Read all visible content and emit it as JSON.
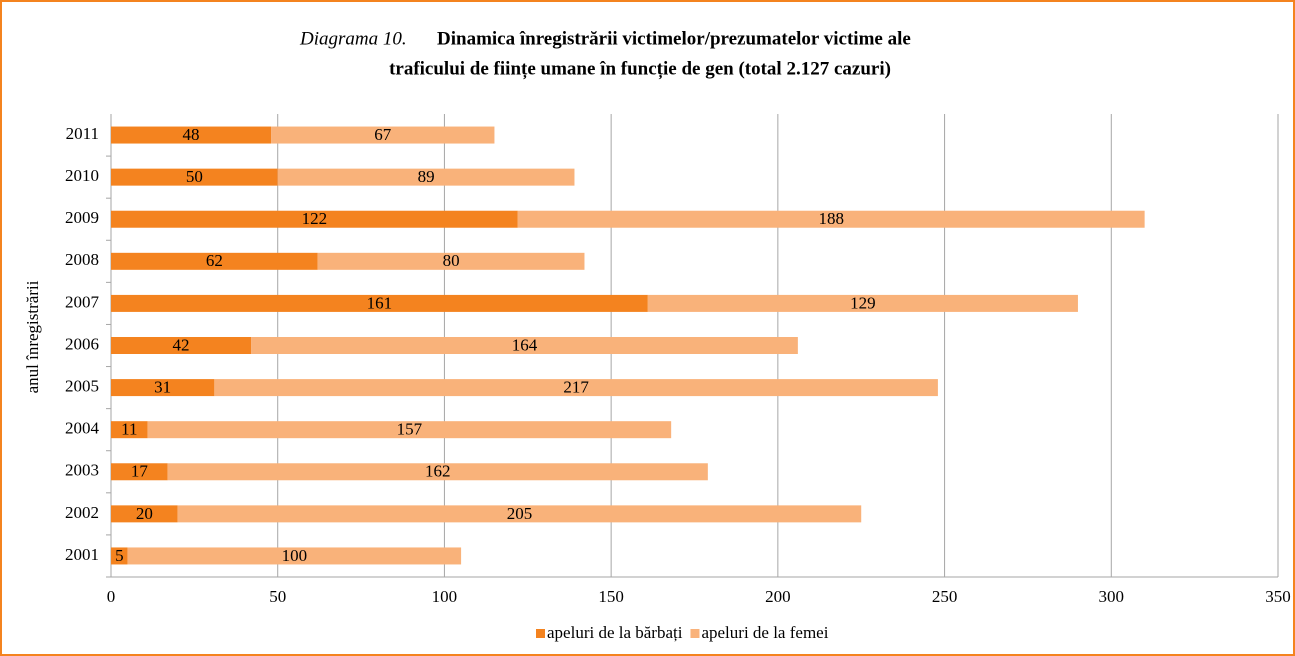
{
  "chart_data": {
    "type": "stacked_barh",
    "title_prefix": "Diagrama 10.",
    "title": [
      "Dinamica înregistrării victimelor/prezumatelor victime ale",
      "traficului de ființe umane în funcție de gen (total 2.127 cazuri)"
    ],
    "y_label": "anul înregistrării",
    "categories": [
      "2001",
      "2002",
      "2003",
      "2004",
      "2005",
      "2006",
      "2007",
      "2008",
      "2009",
      "2010",
      "2011"
    ],
    "series": [
      {
        "name": "apeluri de la bărbați",
        "color": "#f4831f",
        "values": [
          5,
          20,
          17,
          11,
          31,
          42,
          161,
          62,
          122,
          50,
          48
        ]
      },
      {
        "name": "apeluri de la femei",
        "color": "#f9b27a",
        "values": [
          100,
          205,
          162,
          157,
          217,
          164,
          129,
          80,
          188,
          89,
          67
        ]
      }
    ],
    "xlim": [
      0,
      350
    ],
    "xticks": [
      0,
      50,
      100,
      150,
      200,
      250,
      300,
      350
    ],
    "grid": true,
    "legend": "bottom"
  }
}
